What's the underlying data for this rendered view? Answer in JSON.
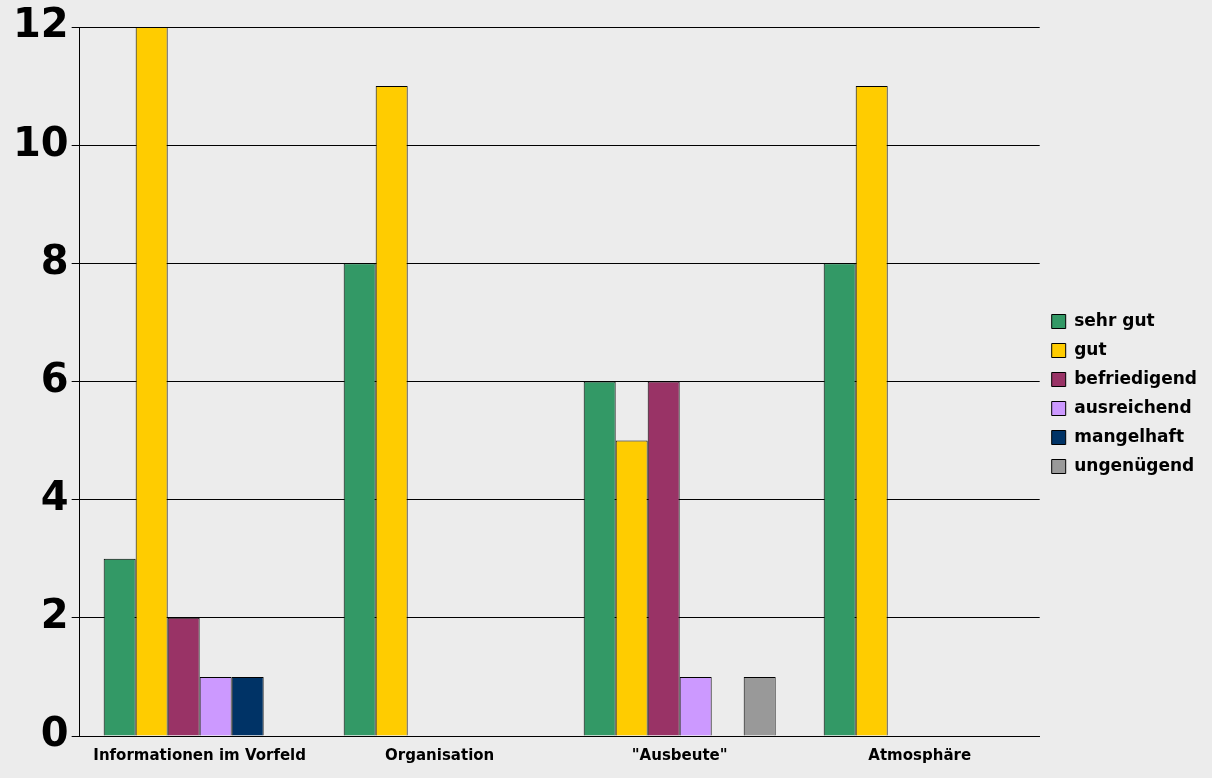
{
  "chart_data": {
    "type": "bar",
    "categories": [
      "Informationen im Vorfeld",
      "Organisation",
      "\"Ausbeute\"",
      "Atmosphäre"
    ],
    "series": [
      {
        "name": "sehr gut",
        "color": "#339966",
        "values": [
          3,
          8,
          6,
          8
        ]
      },
      {
        "name": "gut",
        "color": "#ffcc00",
        "values": [
          12,
          11,
          5,
          11
        ]
      },
      {
        "name": "befriedigend",
        "color": "#993366",
        "values": [
          2,
          0,
          6,
          0
        ]
      },
      {
        "name": "ausreichend",
        "color": "#cc99ff",
        "values": [
          1,
          0,
          1,
          0
        ]
      },
      {
        "name": "mangelhaft",
        "color": "#003366",
        "values": [
          1,
          0,
          0,
          0
        ]
      },
      {
        "name": "ungenügend",
        "color": "#999999",
        "values": [
          0,
          0,
          1,
          0
        ]
      }
    ],
    "ylim": [
      0,
      12
    ],
    "yticks": [
      0,
      2,
      4,
      6,
      8,
      10,
      12
    ],
    "grid": "y",
    "legend": "right"
  }
}
